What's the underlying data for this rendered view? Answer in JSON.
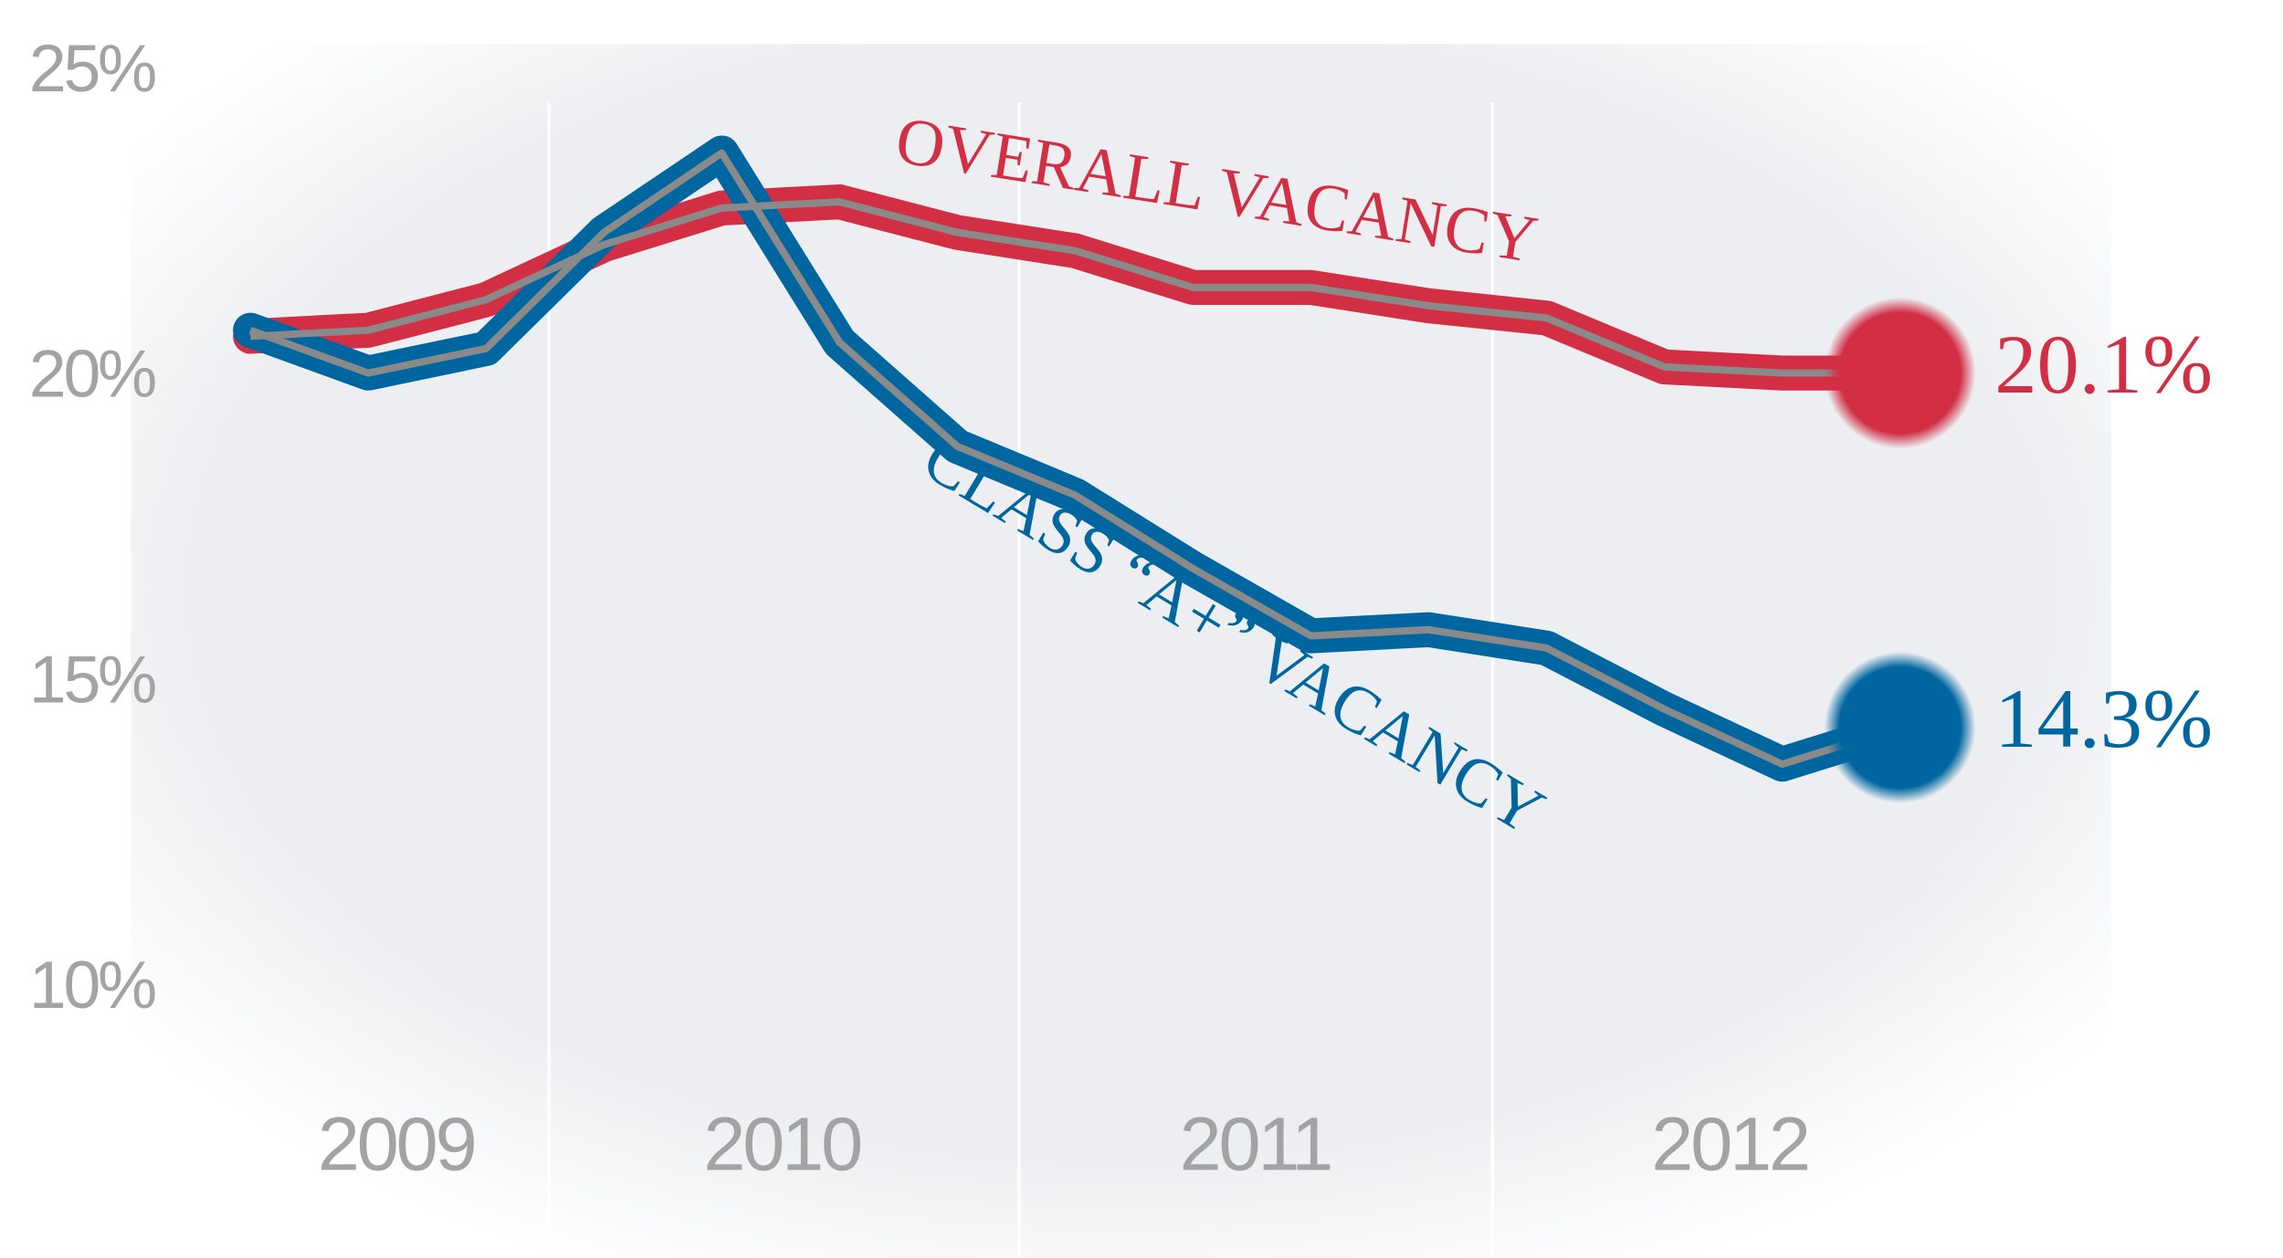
{
  "chart_data": {
    "type": "line",
    "x_labels": [
      "2009",
      "2010",
      "2011",
      "2012"
    ],
    "series": [
      {
        "name": "OVERALL VACANCY",
        "color": "#d22f45",
        "values": [
          20.7,
          20.8,
          21.3,
          22.2,
          22.8,
          22.9,
          22.4,
          22.1,
          21.5,
          21.5,
          21.2,
          21.0,
          20.2,
          20.1,
          20.1
        ],
        "end_label": "20.1%"
      },
      {
        "name": "CLASS “A+” VACANCY",
        "color": "#0066a0",
        "values": [
          20.8,
          20.1,
          20.5,
          22.4,
          23.7,
          20.6,
          18.9,
          18.1,
          16.9,
          15.8,
          15.9,
          15.6,
          14.6,
          13.7,
          14.3
        ],
        "end_label": "14.3%"
      }
    ],
    "ylim": [
      8.1,
      26.2
    ],
    "yticks": [
      {
        "value": 10,
        "label": "10%"
      },
      {
        "value": 15,
        "label": "15%"
      },
      {
        "value": 20,
        "label": "20%"
      },
      {
        "value": 25,
        "label": "25%"
      }
    ]
  }
}
